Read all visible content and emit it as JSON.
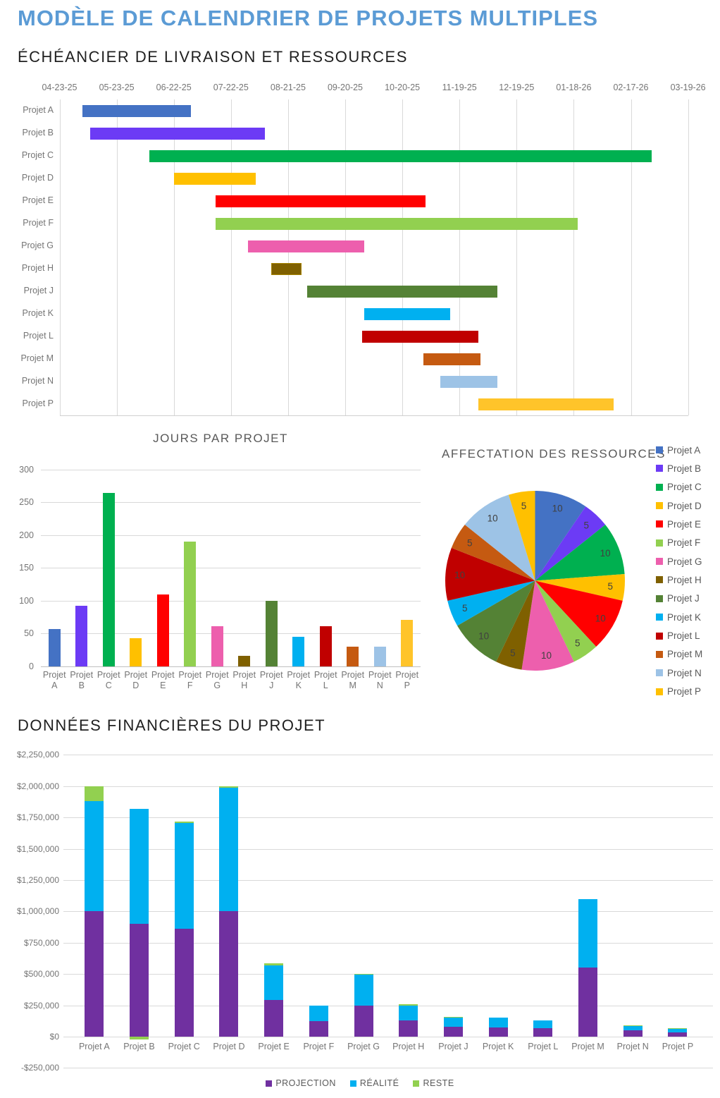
{
  "header": {
    "title": "MODÈLE DE CALENDRIER DE PROJETS MULTIPLES",
    "subtitle": "ÉCHÉANCIER DE LIVRAISON ET RESSOURCES"
  },
  "colors": {
    "accent_blue": "#5B9BD5",
    "heading_text": "#1F1F1F",
    "chart_title_gray": "#595959",
    "axis_text_gray": "#757575",
    "gridline": "#D9D9D9",
    "axis_line": "#BFBFBF",
    "pie_data_label": "#404040"
  },
  "projects": [
    "Projet A",
    "Projet B",
    "Projet C",
    "Projet D",
    "Projet E",
    "Projet F",
    "Projet G",
    "Projet H",
    "Projet J",
    "Projet K",
    "Projet L",
    "Projet M",
    "Projet N",
    "Projet P"
  ],
  "palette": [
    "#4472C4",
    "#6C3BF5",
    "#00B050",
    "#FFC000",
    "#FF0000",
    "#92D050",
    "#ED5FAD",
    "#7F6000",
    "#548235",
    "#00B0F0",
    "#C00000",
    "#C55A11",
    "#9DC3E6",
    "#FFC42A"
  ],
  "chart_data": [
    {
      "type": "gantt",
      "title": "ÉCHÉANCIER DE LIVRAISON ET RESSOURCES",
      "x_tick_labels": [
        "04-23-25",
        "05-23-25",
        "06-22-25",
        "07-22-25",
        "08-21-25",
        "09-20-25",
        "10-20-25",
        "11-19-25",
        "12-19-25",
        "01-18-26",
        "02-17-26",
        "03-19-26"
      ],
      "tick_interval_days": 30,
      "grid": true,
      "rows": [
        {
          "label": "Projet A",
          "color": "#4472C4",
          "start_day": 12,
          "duration_days": 57
        },
        {
          "label": "Projet B",
          "color": "#6C3BF5",
          "start_day": 16,
          "duration_days": 92
        },
        {
          "label": "Projet C",
          "color": "#00B050",
          "start_day": 47,
          "duration_days": 264
        },
        {
          "label": "Projet D",
          "color": "#FFC000",
          "start_day": 60,
          "duration_days": 43
        },
        {
          "label": "Projet E",
          "color": "#FF0000",
          "start_day": 82,
          "duration_days": 110
        },
        {
          "label": "Projet F",
          "color": "#92D050",
          "start_day": 82,
          "duration_days": 190
        },
        {
          "label": "Projet G",
          "color": "#ED5FAD",
          "start_day": 99,
          "duration_days": 61
        },
        {
          "label": "Projet H",
          "color": "#7F6000",
          "start_day": 111,
          "duration_days": 16,
          "border": "#A58300"
        },
        {
          "label": "Projet J",
          "color": "#548235",
          "start_day": 130,
          "duration_days": 100
        },
        {
          "label": "Projet K",
          "color": "#00B0F0",
          "start_day": 160,
          "duration_days": 45
        },
        {
          "label": "Projet L",
          "color": "#C00000",
          "start_day": 159,
          "duration_days": 61
        },
        {
          "label": "Projet M",
          "color": "#C55A11",
          "start_day": 191,
          "duration_days": 30
        },
        {
          "label": "Projet N",
          "color": "#9DC3E6",
          "start_day": 200,
          "duration_days": 30
        },
        {
          "label": "Projet P",
          "color": "#FFC42A",
          "start_day": 220,
          "duration_days": 71
        }
      ]
    },
    {
      "type": "bar",
      "title": "JOURS PAR PROJET",
      "categories": [
        "Projet A",
        "Projet B",
        "Projet C",
        "Projet D",
        "Projet E",
        "Projet F",
        "Projet G",
        "Projet H",
        "Projet J",
        "Projet K",
        "Projet L",
        "Projet M",
        "Projet N",
        "Projet P"
      ],
      "values": [
        57,
        92,
        264,
        43,
        110,
        190,
        61,
        16,
        100,
        45,
        61,
        30,
        30,
        71
      ],
      "colors": [
        "#4472C4",
        "#6C3BF5",
        "#00B050",
        "#FFC000",
        "#FF0000",
        "#92D050",
        "#ED5FAD",
        "#7F6000",
        "#548235",
        "#00B0F0",
        "#C00000",
        "#C55A11",
        "#9DC3E6",
        "#FFC42A"
      ],
      "xlabel": "",
      "ylabel": "",
      "ylim": [
        0,
        300
      ],
      "ytick_step": 50,
      "grid": true,
      "legend_position": "none"
    },
    {
      "type": "pie",
      "title": "AFFECTATION DES RESSOURCES",
      "labels": [
        "Projet A",
        "Projet B",
        "Projet C",
        "Projet D",
        "Projet E",
        "Projet F",
        "Projet G",
        "Projet H",
        "Projet J",
        "Projet K",
        "Projet L",
        "Projet M",
        "Projet N",
        "Projet P"
      ],
      "values": [
        10,
        5,
        10,
        5,
        10,
        5,
        10,
        5,
        10,
        5,
        10,
        5,
        10,
        5
      ],
      "colors": [
        "#4472C4",
        "#6C3BF5",
        "#00B050",
        "#FFC000",
        "#FF0000",
        "#92D050",
        "#ED5FAD",
        "#7F6000",
        "#548235",
        "#00B0F0",
        "#C00000",
        "#C55A11",
        "#9DC3E6",
        "#FFC000"
      ],
      "show_data_labels": true,
      "start_angle_deg": 0,
      "legend_position": "right"
    },
    {
      "type": "stacked-bar",
      "title": "DONNÉES FINANCIÈRES DU PROJET",
      "categories": [
        "Projet A",
        "Projet B",
        "Projet C",
        "Projet D",
        "Projet E",
        "Projet F",
        "Projet G",
        "Projet H",
        "Projet J",
        "Projet K",
        "Projet L",
        "Projet M",
        "Projet N",
        "Projet P"
      ],
      "series": [
        {
          "name": "PROJECTION",
          "color": "#7030A0",
          "values": [
            1000000,
            900000,
            860000,
            1000000,
            295000,
            125000,
            250000,
            128000,
            80000,
            75000,
            65000,
            550000,
            48000,
            32000
          ]
        },
        {
          "name": "RÉALITÉ",
          "color": "#00B0F0",
          "values": [
            880000,
            920000,
            845000,
            990000,
            275000,
            125000,
            245000,
            122000,
            76000,
            78000,
            62000,
            550000,
            34000,
            28000
          ]
        },
        {
          "name": "RESTE",
          "color": "#92D050",
          "values": [
            120000,
            -25000,
            15000,
            10000,
            15000,
            0,
            5000,
            7000,
            4000,
            0,
            0,
            0,
            8000,
            5000
          ]
        }
      ],
      "ylim": [
        -250000,
        2250000
      ],
      "ytick_step": 250000,
      "ytick_labels": [
        "$2,250,000",
        "$2,000,000",
        "$1,750,000",
        "$1,500,000",
        "$1,250,000",
        "$1,000,000",
        "$750,000",
        "$500,000",
        "$250,000",
        "$0",
        "-$250,000"
      ],
      "grid": true,
      "legend_position": "bottom"
    }
  ]
}
